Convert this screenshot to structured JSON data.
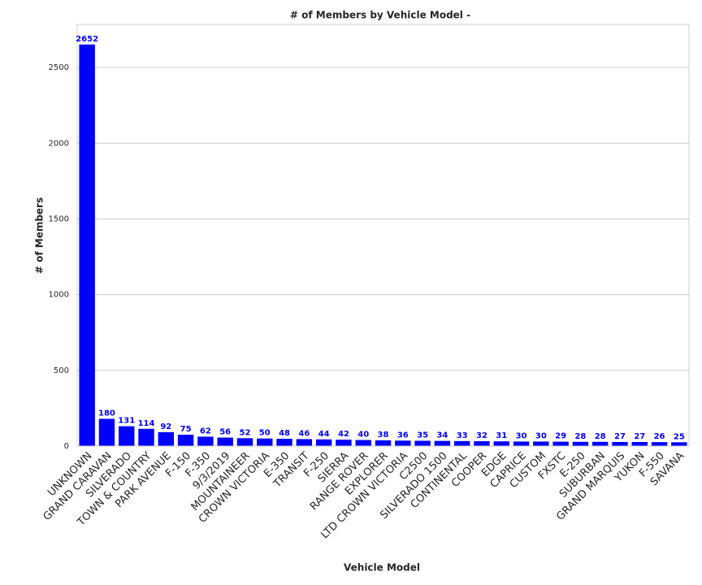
{
  "chart_data": {
    "type": "bar",
    "title": "# of Members by Vehicle Model -",
    "x_label": "Vehicle Model",
    "y_label": "# of Members",
    "categories": [
      "UNKNOWN",
      "GRAND CARAVAN",
      "SILVERADO",
      "TOWN & COUNTRY",
      "PARK AVENUE",
      "F-150",
      "F-350",
      "9/3/2019",
      "MOUNTAINEER",
      "CROWN VICTORIA",
      "E-350",
      "TRANSIT",
      "F-250",
      "SIERRA",
      "RANGE ROVER",
      "EXPLORER",
      "LTD CROWN VICTORIA",
      "C2500",
      "SILVERADO 1500",
      "CONTINENTAL",
      "COOPER",
      "EDGE",
      "CAPRICE",
      "CUSTOM",
      "FXSTC",
      "E-250",
      "SUBURBAN",
      "GRAND MARQUIS",
      "YUKON",
      "F-550",
      "SAVANA"
    ],
    "values": [
      2652,
      180,
      131,
      114,
      92,
      75,
      62,
      56,
      52,
      50,
      48,
      46,
      44,
      42,
      40,
      38,
      36,
      35,
      34,
      33,
      32,
      31,
      30,
      30,
      29,
      28,
      28,
      27,
      27,
      26,
      25
    ],
    "color": "#0000ff",
    "ylim": [
      0,
      2785
    ],
    "yticks": [
      0,
      500,
      1000,
      1500,
      2000,
      2500
    ],
    "grid": true
  }
}
